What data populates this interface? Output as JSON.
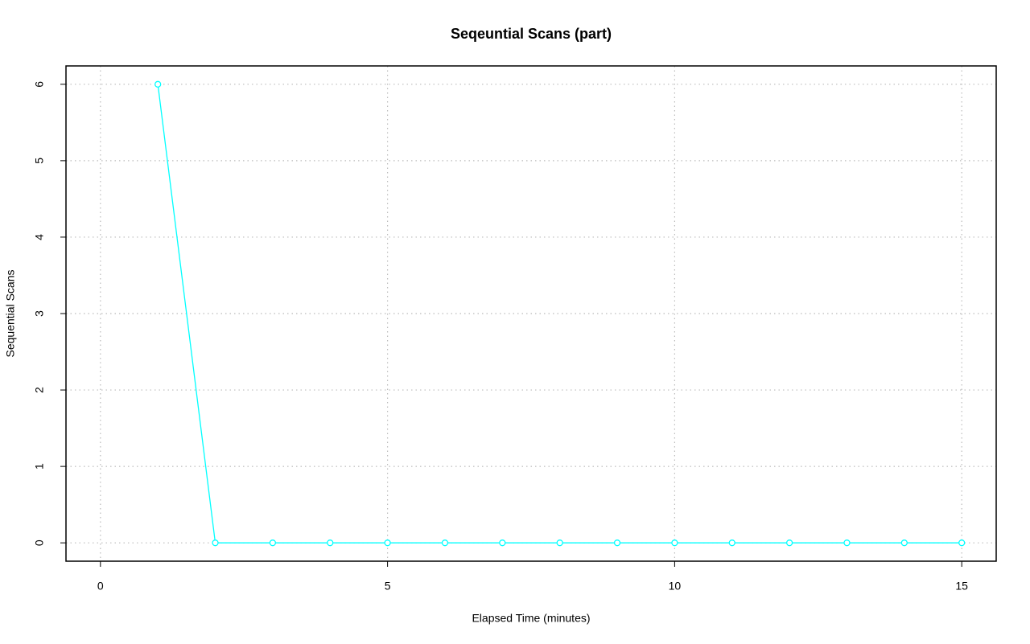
{
  "chart_data": {
    "type": "line",
    "title": "Seqeuntial Scans (part)",
    "x_label": "Elapsed Time (minutes)",
    "y_label": "Sequential Scans",
    "x": [
      1,
      2,
      3,
      4,
      5,
      6,
      7,
      8,
      9,
      10,
      11,
      12,
      13,
      14,
      15
    ],
    "series": [
      {
        "color": "#00ffff",
        "values": [
          6,
          0,
          0,
          0,
          0,
          0,
          0,
          0,
          0,
          0,
          0,
          0,
          0,
          0,
          0
        ]
      }
    ],
    "xlim": [
      -0.6,
      15.6
    ],
    "xticks": [
      0,
      5,
      10,
      15
    ],
    "ylim": [
      -0.24,
      6.24
    ],
    "yticks": [
      0,
      1,
      2,
      3,
      4,
      5,
      6
    ],
    "grid": true
  }
}
